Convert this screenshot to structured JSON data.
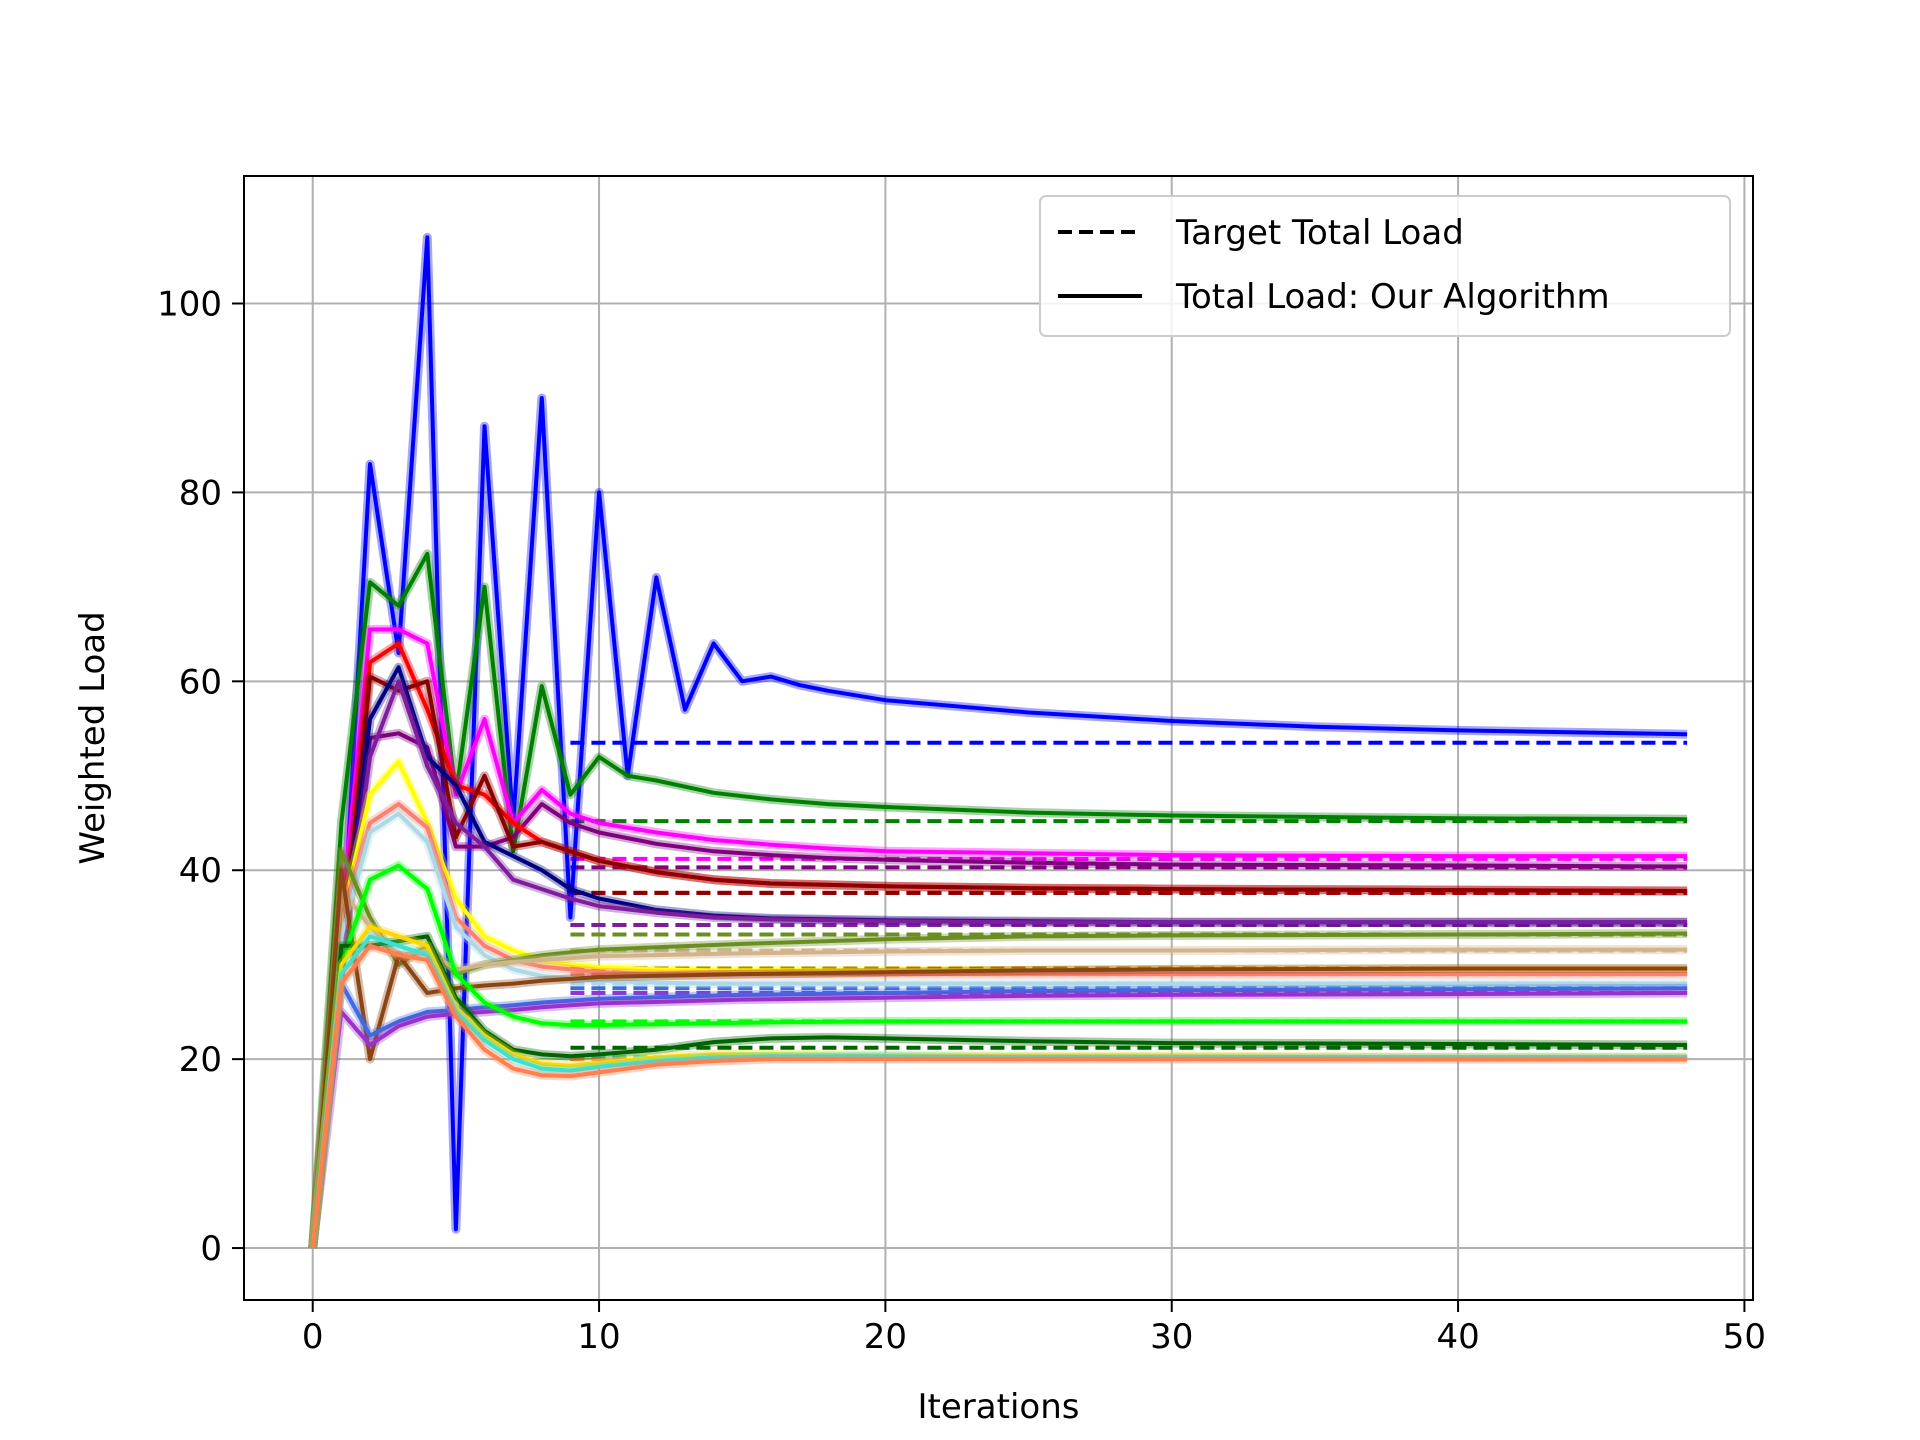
{
  "chart_data": {
    "type": "line",
    "title": "",
    "xlabel": "Iterations",
    "ylabel": "Weighted Load",
    "xlim": [
      -2.4,
      50.3
    ],
    "ylim": [
      -5.5,
      113.5
    ],
    "xticks": [
      0,
      10,
      20,
      30,
      40,
      50
    ],
    "yticks": [
      0,
      20,
      40,
      60,
      80,
      100
    ],
    "grid": true,
    "legend": {
      "placement": "top-right",
      "entries": [
        {
          "label": "Target Total Load",
          "style": "dashed"
        },
        {
          "label": "Total Load: Our Algorithm",
          "style": "solid"
        }
      ]
    },
    "target_start": 9,
    "end": 48,
    "series": [
      {
        "color": "#0000ff",
        "target": 53.5,
        "x": [
          0,
          1,
          2,
          3,
          4,
          5,
          6,
          7,
          8,
          9,
          10,
          11,
          12,
          13,
          14,
          15,
          16,
          17,
          18,
          20,
          25,
          30,
          35,
          40,
          48
        ],
        "y": [
          0,
          30,
          83,
          63,
          107,
          2,
          87,
          45,
          90,
          35,
          80,
          50,
          71,
          57,
          64,
          60,
          60.5,
          59.6,
          59,
          58,
          56.7,
          55.8,
          55.2,
          54.8,
          54.4
        ]
      },
      {
        "color": "#008000",
        "target": 45.2,
        "x": [
          0,
          1,
          2,
          3,
          4,
          5,
          6,
          7,
          8,
          9,
          10,
          11,
          12,
          14,
          16,
          18,
          20,
          25,
          30,
          40,
          48
        ],
        "y": [
          0,
          45,
          70.5,
          68,
          73.5,
          48,
          70,
          42,
          59.5,
          48,
          52,
          50,
          49.5,
          48.2,
          47.5,
          47,
          46.7,
          46.1,
          45.8,
          45.5,
          45.4
        ]
      },
      {
        "color": "#ff00ff",
        "target": 41.2,
        "x": [
          0,
          1,
          2,
          3,
          4,
          5,
          6,
          7,
          8,
          9,
          10,
          12,
          14,
          16,
          18,
          20,
          25,
          30,
          40,
          48
        ],
        "y": [
          0,
          35,
          65.5,
          65.5,
          64,
          48,
          56,
          45,
          48.5,
          46,
          45,
          44,
          43.2,
          42.7,
          42.3,
          42,
          41.8,
          41.6,
          41.5,
          41.5
        ]
      },
      {
        "color": "#800080",
        "target": 40.3,
        "x": [
          0,
          1,
          2,
          3,
          4,
          5,
          6,
          7,
          8,
          9,
          10,
          12,
          14,
          16,
          18,
          20,
          25,
          30,
          40,
          48
        ],
        "y": [
          0,
          30,
          54,
          54.5,
          53,
          42.5,
          42.5,
          43.5,
          47,
          45,
          44,
          42.8,
          42,
          41.6,
          41.3,
          41.1,
          40.8,
          40.6,
          40.5,
          40.4
        ]
      },
      {
        "color": "#ff0000",
        "target": 37.6,
        "x": [
          0,
          1,
          2,
          3,
          4,
          5,
          6,
          7,
          8,
          9,
          10,
          12,
          14,
          16,
          20,
          25,
          30,
          40,
          48
        ],
        "y": [
          0,
          30,
          62,
          64,
          57,
          49,
          48,
          45,
          43,
          42,
          41,
          39.8,
          39,
          38.6,
          38.3,
          38.1,
          38,
          37.9,
          37.8
        ]
      },
      {
        "color": "#8b0000",
        "target": 37.6,
        "x": [
          0,
          1,
          2,
          3,
          4,
          5,
          6,
          7,
          8,
          9,
          10,
          12,
          14,
          16,
          20,
          25,
          30,
          40,
          48
        ],
        "y": [
          0,
          30,
          60.5,
          59,
          60,
          43.5,
          50,
          42.5,
          43,
          42,
          41,
          39.8,
          39,
          38.6,
          38.3,
          38.1,
          38,
          37.9,
          37.8
        ]
      },
      {
        "color": "#000080",
        "target": 34.2,
        "x": [
          0,
          1,
          2,
          3,
          4,
          5,
          6,
          7,
          8,
          9,
          10,
          12,
          14,
          16,
          20,
          25,
          30,
          40,
          48
        ],
        "y": [
          0,
          30,
          56,
          61.5,
          52,
          49,
          43,
          41.5,
          40,
          38,
          37,
          35.8,
          35.2,
          34.9,
          34.7,
          34.6,
          34.5,
          34.5,
          34.5
        ]
      },
      {
        "color": "#7e1e9c",
        "target": 34.2,
        "x": [
          0,
          1,
          2,
          3,
          4,
          5,
          6,
          7,
          8,
          9,
          10,
          12,
          14,
          16,
          20,
          25,
          30,
          40,
          48
        ],
        "y": [
          0,
          30,
          52,
          60,
          51,
          45,
          42.5,
          39,
          38,
          37,
          36.2,
          35.5,
          35,
          34.8,
          34.6,
          34.5,
          34.5,
          34.5,
          34.5
        ]
      },
      {
        "color": "#ffff00",
        "target": 31.5,
        "x": [
          0,
          1,
          2,
          3,
          4,
          5,
          6,
          7,
          8,
          9,
          10,
          12,
          14,
          16,
          20,
          25,
          30,
          40,
          48
        ],
        "y": [
          0,
          35,
          48,
          51.5,
          45,
          37,
          33,
          31.5,
          30.5,
          30,
          29.7,
          29.5,
          29.4,
          29.4,
          29.4,
          29.4,
          29.5,
          29.5,
          29.5
        ]
      },
      {
        "color": "#fa8072",
        "target": 29.0,
        "x": [
          0,
          1,
          2,
          3,
          4,
          5,
          6,
          7,
          8,
          9,
          10,
          12,
          14,
          16,
          20,
          25,
          30,
          40,
          48
        ],
        "y": [
          0,
          35,
          45,
          47,
          44.5,
          35,
          32,
          30.5,
          29.8,
          29.5,
          29.2,
          29,
          29,
          29,
          29,
          29,
          29,
          29,
          29
        ]
      },
      {
        "color": "#add8e6",
        "target": 28.0,
        "x": [
          0,
          1,
          2,
          3,
          4,
          5,
          6,
          7,
          8,
          9,
          10,
          12,
          14,
          16,
          20,
          25,
          30,
          40,
          48
        ],
        "y": [
          0,
          33,
          44,
          46,
          43,
          34,
          31,
          29.5,
          28.8,
          28.5,
          28.3,
          28.1,
          28,
          28,
          28,
          28,
          28,
          28,
          28
        ]
      },
      {
        "color": "#6b8e23",
        "target": 33.2,
        "x": [
          0,
          1,
          2,
          3,
          4,
          5,
          6,
          7,
          8,
          9,
          10,
          15,
          20,
          25,
          30,
          40,
          48
        ],
        "y": [
          0,
          42,
          35,
          30,
          32,
          29,
          30,
          30.5,
          31,
          31.3,
          31.6,
          32.2,
          32.7,
          33,
          33.1,
          33.2,
          33.3
        ]
      },
      {
        "color": "#d2b48c",
        "target": 31.5,
        "x": [
          0,
          1,
          2,
          3,
          4,
          5,
          6,
          7,
          8,
          9,
          10,
          15,
          20,
          25,
          30,
          40,
          48
        ],
        "y": [
          0,
          38,
          34,
          31,
          31.5,
          29.5,
          30,
          30.3,
          30.5,
          30.7,
          30.9,
          31.2,
          31.4,
          31.5,
          31.5,
          31.6,
          31.6
        ]
      },
      {
        "color": "#8b4513",
        "target": 29.6,
        "x": [
          0,
          1,
          2,
          3,
          4,
          5,
          6,
          7,
          8,
          9,
          10,
          15,
          20,
          25,
          30,
          40,
          48
        ],
        "y": [
          0,
          40,
          20,
          31,
          27,
          27.5,
          27.8,
          28,
          28.3,
          28.5,
          28.7,
          29,
          29.2,
          29.4,
          29.5,
          29.6,
          29.6
        ]
      },
      {
        "color": "#4169e1",
        "target": 27.5,
        "x": [
          0,
          1,
          2,
          3,
          4,
          5,
          6,
          7,
          8,
          9,
          10,
          15,
          20,
          25,
          30,
          40,
          48
        ],
        "y": [
          0,
          28,
          22.5,
          24,
          25,
          25.2,
          25.5,
          25.7,
          26,
          26.2,
          26.4,
          26.8,
          27,
          27.2,
          27.3,
          27.4,
          27.5
        ]
      },
      {
        "color": "#9932cc",
        "target": 27.0,
        "x": [
          0,
          1,
          2,
          3,
          4,
          5,
          6,
          7,
          8,
          9,
          10,
          15,
          20,
          25,
          30,
          40,
          48
        ],
        "y": [
          0,
          25,
          21.5,
          23.5,
          24.5,
          24.8,
          25,
          25.2,
          25.5,
          25.7,
          25.9,
          26.3,
          26.5,
          26.7,
          26.8,
          26.9,
          27
        ]
      },
      {
        "color": "#00ff00",
        "target": 24.0,
        "x": [
          0,
          1,
          2,
          3,
          4,
          5,
          6,
          7,
          8,
          9,
          10,
          12,
          14,
          16,
          20,
          25,
          30,
          40,
          48
        ],
        "y": [
          0,
          30,
          39,
          40.5,
          38,
          29,
          26,
          24.5,
          23.8,
          23.6,
          23.6,
          23.7,
          23.8,
          23.9,
          24,
          24,
          24,
          24,
          24
        ]
      },
      {
        "color": "#006400",
        "target": 21.2,
        "x": [
          0,
          1,
          2,
          3,
          4,
          5,
          6,
          7,
          8,
          9,
          10,
          12,
          14,
          16,
          18,
          20,
          25,
          30,
          40,
          48
        ],
        "y": [
          0,
          32,
          32,
          32.5,
          33,
          26.5,
          23,
          21,
          20.5,
          20.3,
          20.5,
          21,
          21.8,
          22.2,
          22.3,
          22.2,
          21.9,
          21.7,
          21.6,
          21.5
        ]
      },
      {
        "color": "#ffd700",
        "target": 20.2,
        "x": [
          0,
          1,
          2,
          3,
          4,
          5,
          6,
          7,
          8,
          9,
          10,
          12,
          14,
          16,
          20,
          25,
          30,
          40,
          48
        ],
        "y": [
          0,
          30,
          34,
          33,
          32,
          25.5,
          22.5,
          20.5,
          19.5,
          19.3,
          19.6,
          20.2,
          20.5,
          20.5,
          20.4,
          20.3,
          20.3,
          20.2,
          20.2
        ]
      },
      {
        "color": "#40e0d0",
        "target": 20.2,
        "x": [
          0,
          1,
          2,
          3,
          4,
          5,
          6,
          7,
          8,
          9,
          10,
          12,
          14,
          16,
          20,
          25,
          30,
          40,
          48
        ],
        "y": [
          0,
          29,
          33,
          32,
          31,
          25,
          22,
          20,
          19,
          18.8,
          19.2,
          19.8,
          20.2,
          20.3,
          20.3,
          20.2,
          20.2,
          20.2,
          20.2
        ]
      },
      {
        "color": "#ff7f50",
        "target": 20.0,
        "x": [
          0,
          1,
          2,
          3,
          4,
          5,
          6,
          7,
          8,
          9,
          10,
          12,
          14,
          16,
          20,
          25,
          30,
          40,
          48
        ],
        "y": [
          0,
          28,
          32,
          31,
          30.5,
          24.5,
          21,
          19,
          18.3,
          18.2,
          18.6,
          19.4,
          19.8,
          20,
          20,
          20,
          20,
          20,
          20
        ]
      }
    ]
  }
}
